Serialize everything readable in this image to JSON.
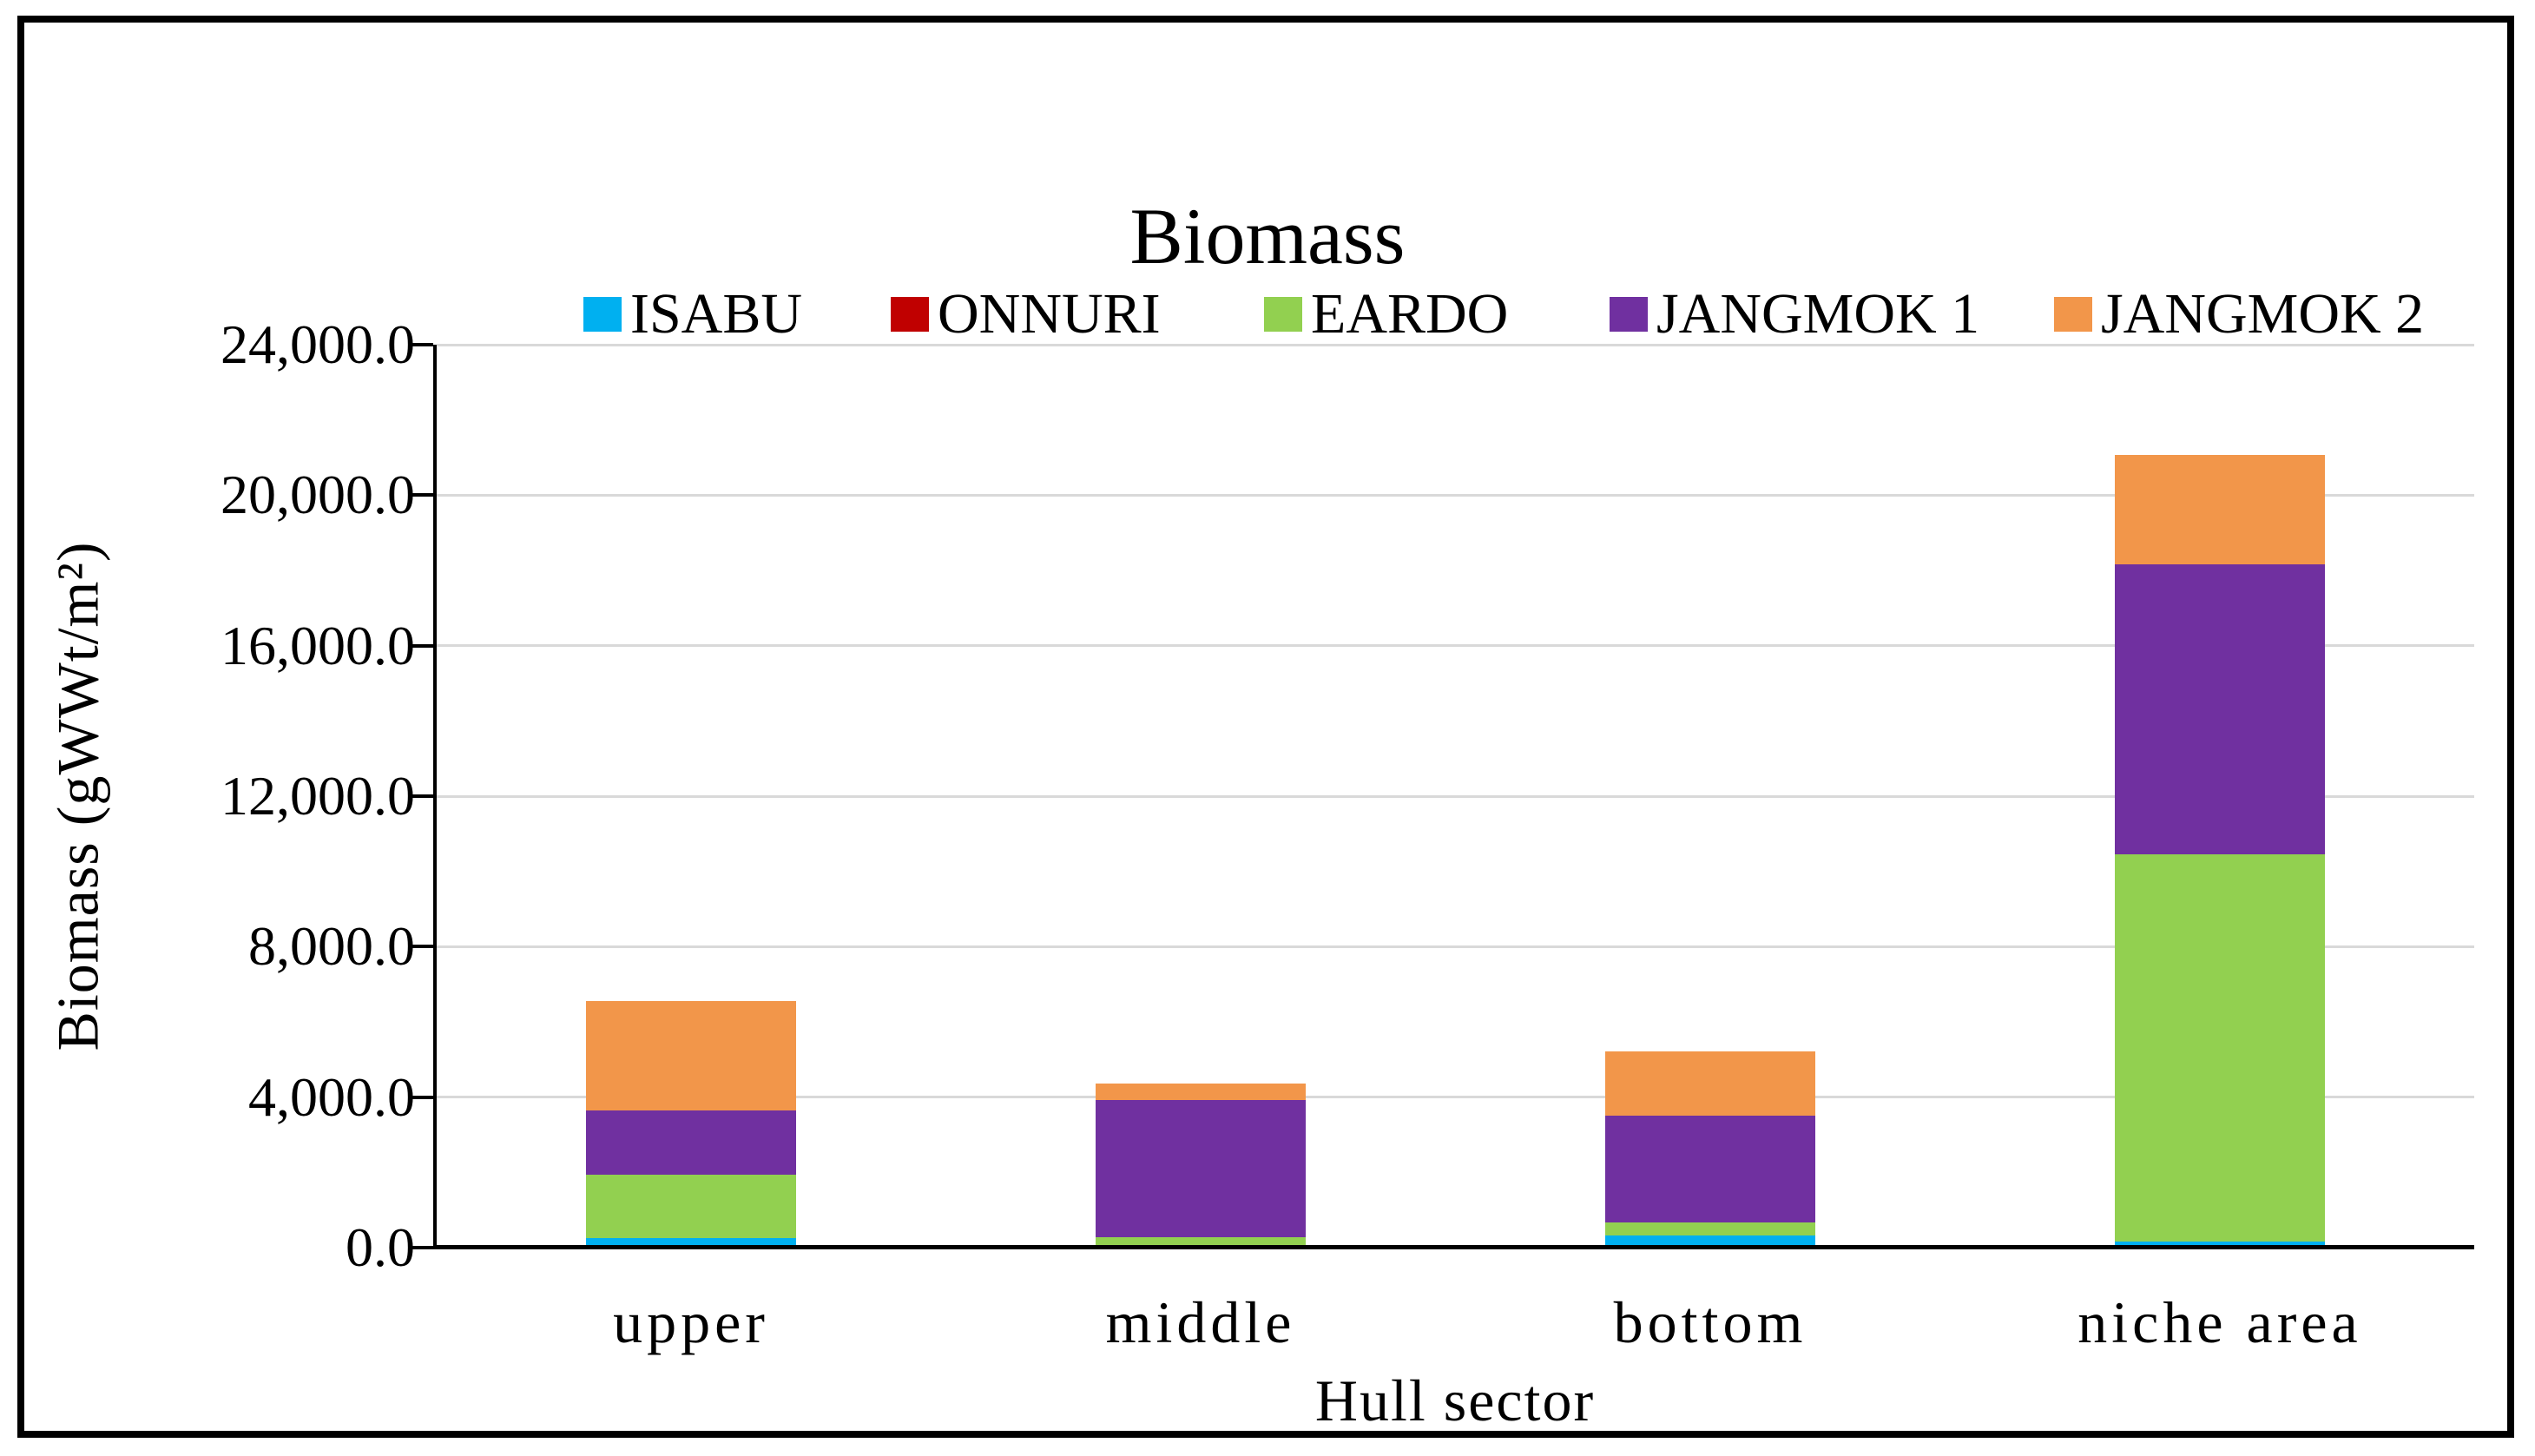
{
  "figure": {
    "title": "Biomass"
  },
  "axes": {
    "y": {
      "title": "Biomass (gWWt/m²)",
      "tick_labels": [
        "24,000.0",
        "20,000.0",
        "16,000.0",
        "12,000.0",
        "8,000.0",
        "4,000.0",
        "0.0"
      ],
      "min": 0,
      "max": 24000,
      "step": 4000
    },
    "x": {
      "title": "Hull sector",
      "categories": [
        "upper",
        "middle",
        "bottom",
        "niche area"
      ]
    }
  },
  "legend": {
    "entries": [
      "ISABU",
      "ONNURI",
      "EARDO",
      "JANGMOK 1",
      "JANGMOK 2"
    ]
  },
  "colors": {
    "ISABU": "#00B0F0",
    "ONNURI": "#C00000",
    "EARDO": "#92D050",
    "JANGMOK 1": "#7030A0",
    "JANGMOK 2": "#F2964A",
    "gridline": "#D9D9D9",
    "axis": "#000000"
  },
  "chart_data": {
    "type": "bar",
    "stacked": true,
    "title": "Biomass",
    "xlabel": "Hull sector",
    "ylabel": "Biomass (gWWt/m²)",
    "ylim": [
      0,
      24000
    ],
    "ytick_step": 4000,
    "grid": "horizontal",
    "legend_position": "top",
    "categories": [
      "upper",
      "middle",
      "bottom",
      "niche area"
    ],
    "series": [
      {
        "name": "ISABU",
        "color": "#00B0F0",
        "values": [
          180,
          0,
          250,
          90
        ]
      },
      {
        "name": "ONNURI",
        "color": "#C00000",
        "values": [
          0,
          0,
          0,
          0
        ]
      },
      {
        "name": "EARDO",
        "color": "#92D050",
        "values": [
          1700,
          200,
          350,
          10300
        ]
      },
      {
        "name": "JANGMOK 1",
        "color": "#7030A0",
        "values": [
          1700,
          3650,
          2850,
          7700
        ]
      },
      {
        "name": "JANGMOK 2",
        "color": "#F2964A",
        "values": [
          2900,
          450,
          1690,
          2900
        ]
      }
    ],
    "totals": [
      6480,
      4300,
      5140,
      20990
    ]
  }
}
